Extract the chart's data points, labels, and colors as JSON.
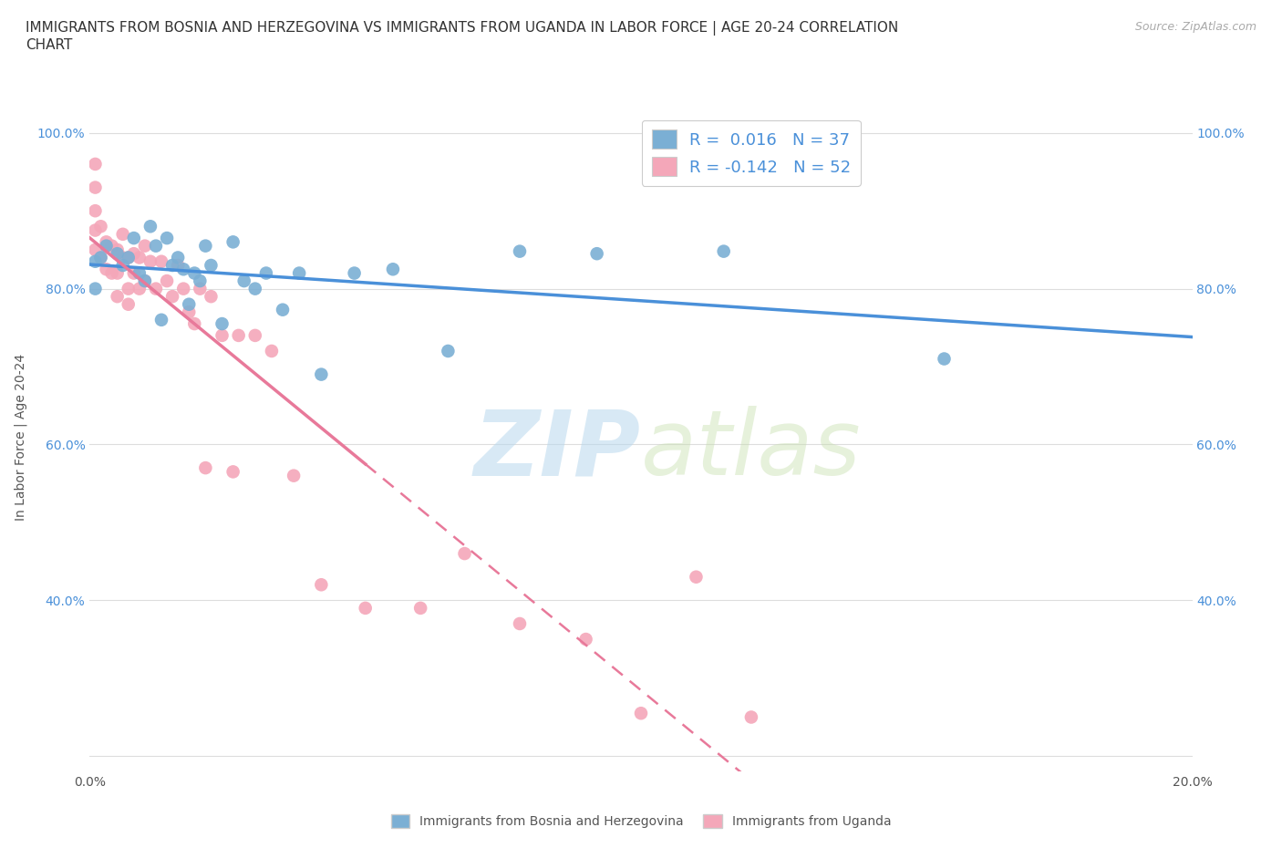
{
  "title": "IMMIGRANTS FROM BOSNIA AND HERZEGOVINA VS IMMIGRANTS FROM UGANDA IN LABOR FORCE | AGE 20-24 CORRELATION\nCHART",
  "source_text": "Source: ZipAtlas.com",
  "ylabel": "In Labor Force | Age 20-24",
  "xlim": [
    0.0,
    0.2
  ],
  "ylim": [
    0.18,
    1.04
  ],
  "bosnia_color": "#7bafd4",
  "uganda_color": "#f4a7b9",
  "line_bosnia_color": "#4a90d9",
  "line_uganda_color": "#e8799a",
  "bosnia_R": 0.016,
  "bosnia_N": 37,
  "uganda_R": -0.142,
  "uganda_N": 52,
  "bosnia_scatter_x": [
    0.001,
    0.001,
    0.002,
    0.003,
    0.005,
    0.006,
    0.007,
    0.008,
    0.009,
    0.01,
    0.011,
    0.012,
    0.013,
    0.014,
    0.015,
    0.016,
    0.017,
    0.018,
    0.019,
    0.02,
    0.021,
    0.022,
    0.024,
    0.026,
    0.028,
    0.03,
    0.032,
    0.035,
    0.038,
    0.042,
    0.048,
    0.055,
    0.065,
    0.078,
    0.092,
    0.115,
    0.155
  ],
  "bosnia_scatter_y": [
    0.835,
    0.8,
    0.84,
    0.855,
    0.845,
    0.83,
    0.84,
    0.865,
    0.82,
    0.81,
    0.88,
    0.855,
    0.76,
    0.865,
    0.83,
    0.84,
    0.825,
    0.78,
    0.82,
    0.81,
    0.855,
    0.83,
    0.755,
    0.86,
    0.81,
    0.8,
    0.82,
    0.773,
    0.82,
    0.69,
    0.82,
    0.825,
    0.72,
    0.848,
    0.845,
    0.848,
    0.71
  ],
  "uganda_scatter_x": [
    0.001,
    0.001,
    0.001,
    0.001,
    0.001,
    0.002,
    0.002,
    0.003,
    0.003,
    0.004,
    0.004,
    0.005,
    0.005,
    0.005,
    0.006,
    0.006,
    0.007,
    0.007,
    0.007,
    0.008,
    0.008,
    0.009,
    0.009,
    0.01,
    0.01,
    0.011,
    0.012,
    0.013,
    0.014,
    0.015,
    0.016,
    0.017,
    0.018,
    0.019,
    0.02,
    0.021,
    0.022,
    0.024,
    0.026,
    0.027,
    0.03,
    0.033,
    0.037,
    0.042,
    0.05,
    0.06,
    0.068,
    0.078,
    0.09,
    0.1,
    0.11,
    0.12
  ],
  "uganda_scatter_y": [
    0.96,
    0.93,
    0.9,
    0.875,
    0.85,
    0.88,
    0.84,
    0.86,
    0.825,
    0.855,
    0.82,
    0.85,
    0.82,
    0.79,
    0.87,
    0.84,
    0.84,
    0.8,
    0.78,
    0.845,
    0.82,
    0.84,
    0.8,
    0.855,
    0.81,
    0.835,
    0.8,
    0.835,
    0.81,
    0.79,
    0.83,
    0.8,
    0.77,
    0.755,
    0.8,
    0.57,
    0.79,
    0.74,
    0.565,
    0.74,
    0.74,
    0.72,
    0.56,
    0.42,
    0.39,
    0.39,
    0.46,
    0.37,
    0.35,
    0.255,
    0.43,
    0.25
  ],
  "legend_label_1": "Immigrants from Bosnia and Herzegovina",
  "legend_label_2": "Immigrants from Uganda",
  "background_color": "#ffffff",
  "title_fontsize": 11,
  "tick_fontsize": 10,
  "axis_label_fontsize": 10
}
